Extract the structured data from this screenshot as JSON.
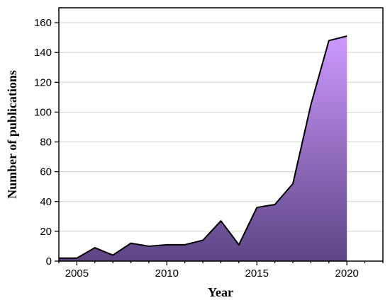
{
  "chart_data": {
    "type": "area",
    "xlabel": "Year",
    "ylabel": "Number of publications",
    "xlim": [
      2004,
      2022
    ],
    "ylim": [
      0,
      170
    ],
    "xticks": [
      2005,
      2010,
      2015,
      2020
    ],
    "yticks": [
      0,
      20,
      40,
      60,
      80,
      100,
      120,
      140,
      160
    ],
    "grid": "horizontal",
    "colors": {
      "fill_top": "#cc99ff",
      "fill_bottom": "#5e4585",
      "line": "#000000"
    },
    "series": [
      {
        "x": [
          2004,
          2005,
          2006,
          2007,
          2008,
          2009,
          2010,
          2011,
          2012,
          2013,
          2014,
          2015,
          2016,
          2017,
          2018,
          2019,
          2020
        ],
        "values": [
          2,
          2,
          9,
          4,
          12,
          10,
          11,
          11,
          14,
          27,
          11,
          36,
          38,
          52,
          105,
          148,
          151
        ]
      }
    ]
  }
}
